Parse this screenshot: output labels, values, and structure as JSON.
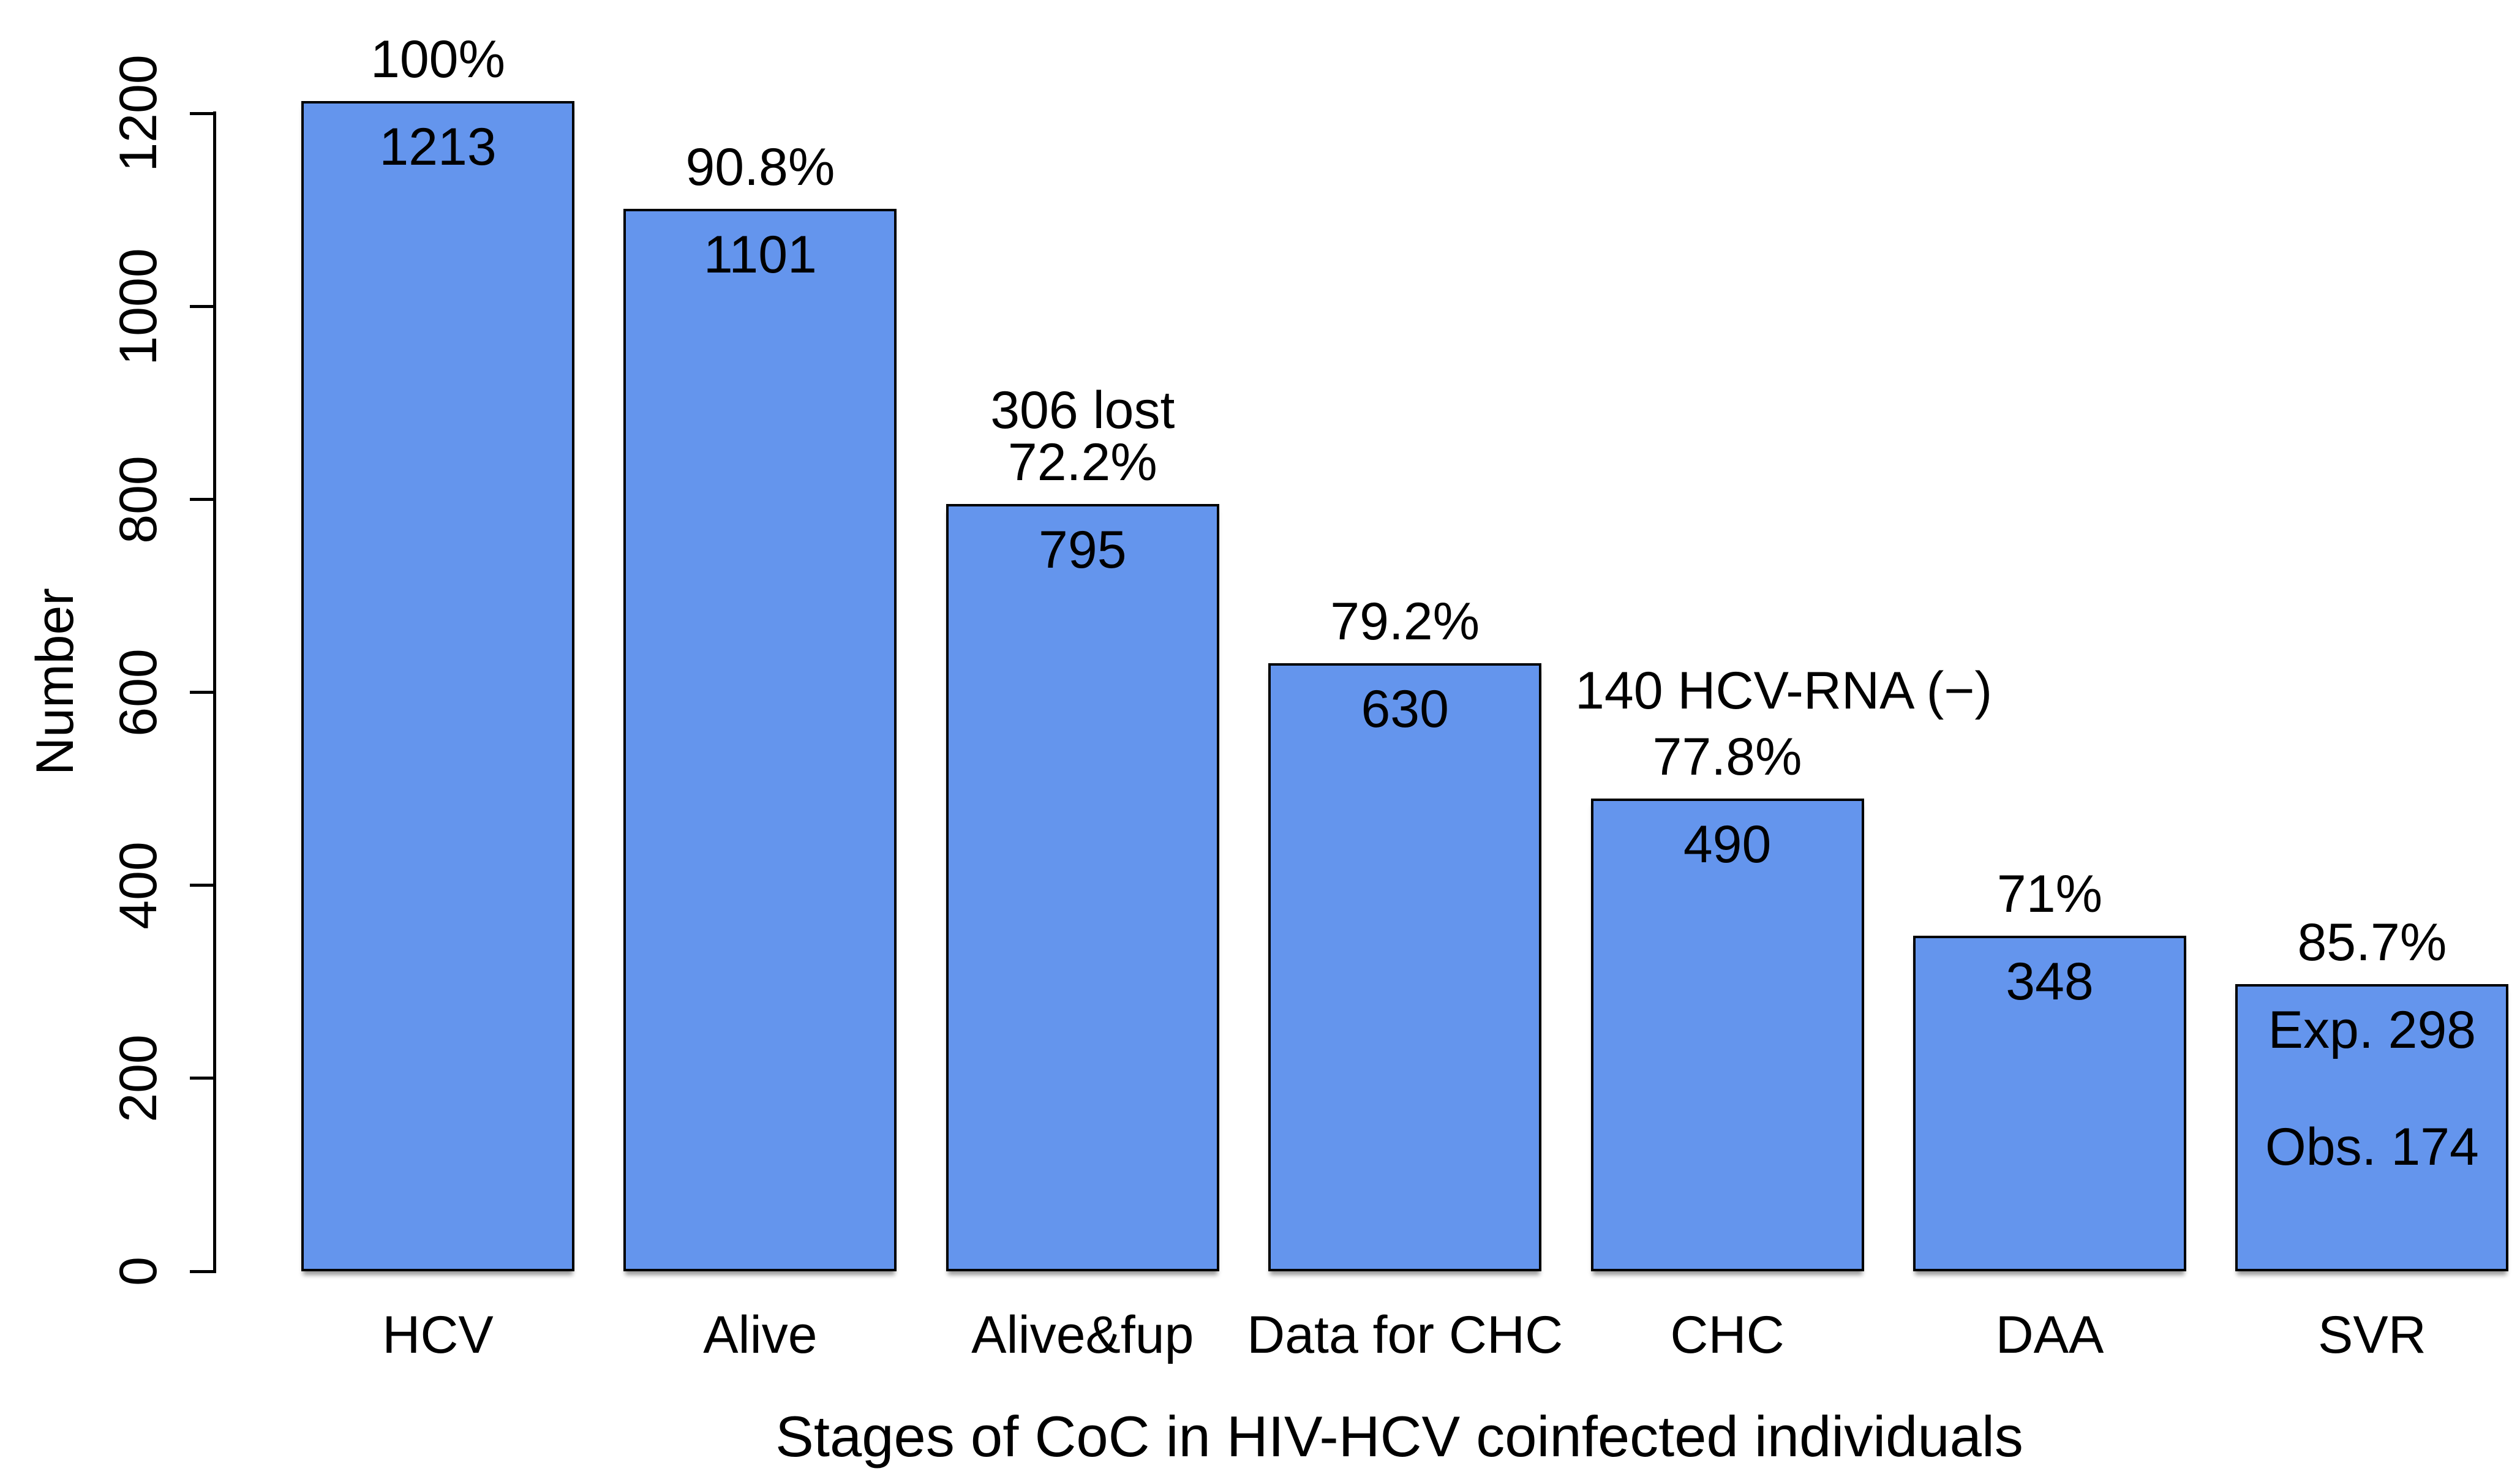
{
  "chart_data": {
    "type": "bar",
    "title": "",
    "xlabel": "Stages of CoC in HIV-HCV coinfected individuals",
    "ylabel": "Number",
    "ylim": [
      0,
      1250
    ],
    "grid": false,
    "legend": "none",
    "bar_color": "#6495ED",
    "bar_border_color": "#000000",
    "y_ticks": [
      0,
      200,
      400,
      600,
      800,
      1000,
      1200
    ],
    "categories": [
      "HCV",
      "Alive",
      "Alive&fup",
      "Data for CHC",
      "CHC",
      "DAA",
      "SVR"
    ],
    "values": [
      1213,
      1101,
      795,
      630,
      490,
      348,
      298
    ],
    "bars": [
      {
        "category": "HCV",
        "value": 1213,
        "percent_label": "100%",
        "annotation": "",
        "inner_labels": [
          "1213"
        ]
      },
      {
        "category": "Alive",
        "value": 1101,
        "percent_label": "90.8%",
        "annotation": "",
        "inner_labels": [
          "1101"
        ]
      },
      {
        "category": "Alive&fup",
        "value": 795,
        "percent_label": "72.2%",
        "annotation": "306 lost",
        "inner_labels": [
          "795"
        ]
      },
      {
        "category": "Data for CHC",
        "value": 630,
        "percent_label": "79.2%",
        "annotation": "",
        "inner_labels": [
          "630"
        ]
      },
      {
        "category": "CHC",
        "value": 490,
        "percent_label": "77.8%",
        "annotation": "140 HCV-RNA (−)",
        "inner_labels": [
          "490"
        ]
      },
      {
        "category": "DAA",
        "value": 348,
        "percent_label": "71%",
        "annotation": "",
        "inner_labels": [
          "348"
        ]
      },
      {
        "category": "SVR",
        "value": 298,
        "percent_label": "85.7%",
        "annotation": "",
        "inner_labels": [
          "Exp. 298",
          "Obs. 174"
        ]
      }
    ]
  }
}
